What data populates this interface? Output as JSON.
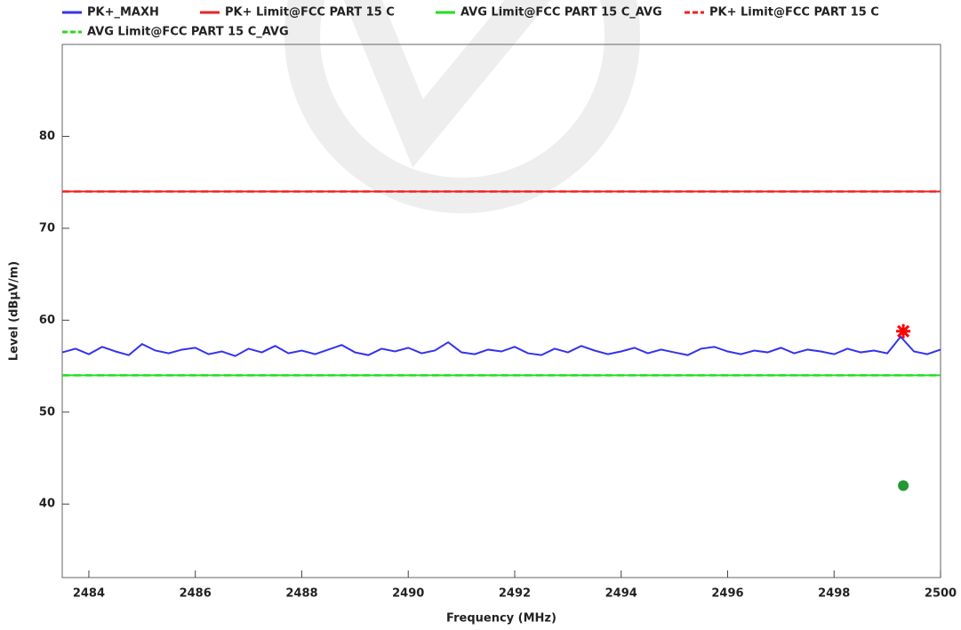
{
  "chart_data": {
    "type": "line",
    "xlabel": "Frequency (MHz)",
    "ylabel": "Level (dBµV/m)",
    "xlim": [
      2483.5,
      2500
    ],
    "xticks": [
      2484,
      2486,
      2488,
      2490,
      2492,
      2494,
      2496,
      2498,
      2500
    ],
    "ylim": [
      32,
      90
    ],
    "yticks": [
      40,
      50,
      60,
      70,
      80
    ],
    "series": [
      {
        "name": "PK+_MAXH",
        "color": "#3333ee",
        "dash": false,
        "x": [
          2483.5,
          2483.75,
          2484,
          2484.25,
          2484.5,
          2484.75,
          2485,
          2485.25,
          2485.5,
          2485.75,
          2486,
          2486.25,
          2486.5,
          2486.75,
          2487,
          2487.25,
          2487.5,
          2487.75,
          2488,
          2488.25,
          2488.5,
          2488.75,
          2489,
          2489.25,
          2489.5,
          2489.75,
          2490,
          2490.25,
          2490.5,
          2490.75,
          2491,
          2491.25,
          2491.5,
          2491.75,
          2492,
          2492.25,
          2492.5,
          2492.75,
          2493,
          2493.25,
          2493.5,
          2493.75,
          2494,
          2494.25,
          2494.5,
          2494.75,
          2495,
          2495.25,
          2495.5,
          2495.75,
          2496,
          2496.25,
          2496.5,
          2496.75,
          2497,
          2497.25,
          2497.5,
          2497.75,
          2498,
          2498.25,
          2498.5,
          2498.75,
          2499,
          2499.25,
          2499.5,
          2499.75,
          2500
        ],
        "values": [
          56.5,
          56.9,
          56.3,
          57.1,
          56.6,
          56.2,
          57.4,
          56.7,
          56.4,
          56.8,
          57.0,
          56.3,
          56.6,
          56.1,
          56.9,
          56.5,
          57.2,
          56.4,
          56.7,
          56.3,
          56.8,
          57.3,
          56.5,
          56.2,
          56.9,
          56.6,
          57.0,
          56.4,
          56.7,
          57.6,
          56.5,
          56.3,
          56.8,
          56.6,
          57.1,
          56.4,
          56.2,
          56.9,
          56.5,
          57.2,
          56.7,
          56.3,
          56.6,
          57.0,
          56.4,
          56.8,
          56.5,
          56.2,
          56.9,
          57.1,
          56.6,
          56.3,
          56.7,
          56.5,
          57.0,
          56.4,
          56.8,
          56.6,
          56.3,
          56.9,
          56.5,
          56.7,
          56.4,
          58.2,
          56.6,
          56.3,
          56.8
        ]
      },
      {
        "name": "PK+ Limit@FCC PART 15 C",
        "color": "#ee2222",
        "dash": false,
        "x": [
          2483.5,
          2500
        ],
        "values": [
          74,
          74
        ]
      },
      {
        "name": "AVG Limit@FCC PART 15 C_AVG",
        "color": "#22dd22",
        "dash": false,
        "x": [
          2483.5,
          2500
        ],
        "values": [
          54,
          54
        ]
      },
      {
        "name": "PK+ Limit@FCC PART 15 C",
        "color": "#ee2222",
        "dash": true,
        "x": [
          2483.5,
          2500
        ],
        "values": [
          74,
          74
        ]
      },
      {
        "name": "AVG Limit@FCC PART 15 C_AVG",
        "color": "#22dd22",
        "dash": true,
        "x": [
          2483.5,
          2500
        ],
        "values": [
          54,
          54
        ]
      }
    ],
    "points": [
      {
        "x": 2499.3,
        "y": 58.8,
        "color": "#ff0000",
        "shape": "asterisk"
      },
      {
        "x": 2499.3,
        "y": 42,
        "color": "#229933",
        "shape": "dot"
      }
    ]
  }
}
